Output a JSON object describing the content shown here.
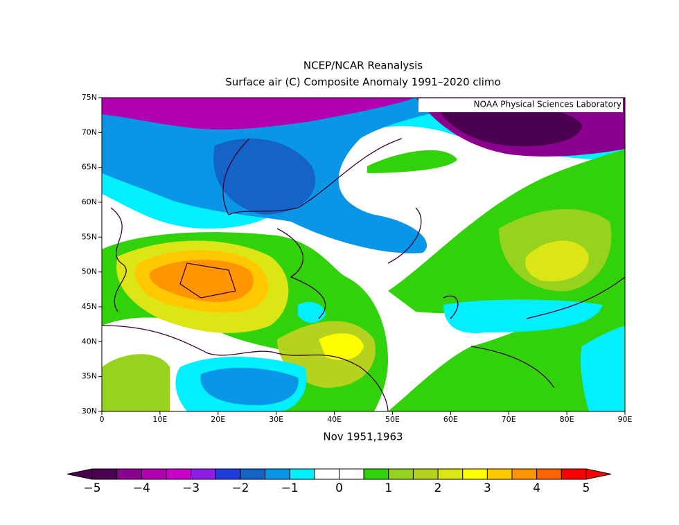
{
  "map": {
    "title": "NCEP/NCAR Reanalysis",
    "subtitle": "Surface air (C) Composite Anomaly 1991–2020 climo",
    "credit": "NOAA Physical Sciences Laboratory",
    "x_label": "Nov 1951,1963",
    "lat_labels": [
      "75N",
      "70N",
      "65N",
      "60N",
      "55N",
      "50N",
      "45N",
      "40N",
      "35N",
      "30N"
    ],
    "lon_labels": [
      "0",
      "10E",
      "20E",
      "30E",
      "40E",
      "50E",
      "60E",
      "70E",
      "80E",
      "90E"
    ]
  },
  "colorbar": {
    "labels": [
      "−5",
      "−4",
      "−3",
      "−2",
      "−1",
      "0",
      "1",
      "2",
      "3",
      "4",
      "5"
    ],
    "colors": [
      "#4b0050",
      "#8c0090",
      "#b000b0",
      "#c800c8",
      "#8c1ee6",
      "#1e3cdc",
      "#1464c8",
      "#0a96e6",
      "#00f0ff",
      "#ffffff",
      "#ffffff",
      "#32d20a",
      "#96d21e",
      "#b4d21e",
      "#dce614",
      "#ffff00",
      "#ffc800",
      "#ff9600",
      "#ff6400",
      "#ff0000"
    ]
  }
}
